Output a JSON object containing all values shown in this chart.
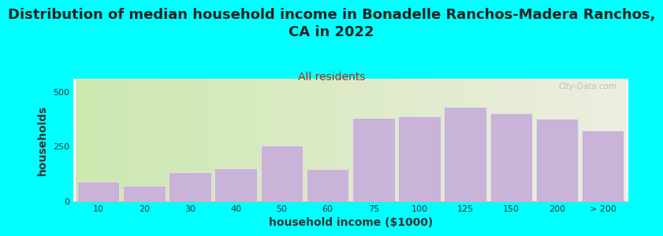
{
  "title": "Distribution of median household income in Bonadelle Ranchos-Madera Ranchos,\nCA in 2022",
  "subtitle": "All residents",
  "xlabel": "household income ($1000)",
  "ylabel": "households",
  "bar_labels": [
    "10",
    "20",
    "30",
    "40",
    "50",
    "60",
    "75",
    "100",
    "125",
    "150",
    "200",
    "> 200"
  ],
  "bar_values": [
    90,
    72,
    130,
    150,
    255,
    145,
    380,
    385,
    430,
    400,
    375,
    320
  ],
  "bar_color": "#c9b3d9",
  "bar_edge_color": "#e8e8e8",
  "background_color": "#00ffff",
  "plot_bg_gradient_left": "#cce8b0",
  "plot_bg_gradient_right": "#eeeee0",
  "ylim": [
    0,
    560
  ],
  "yticks": [
    0,
    250,
    500
  ],
  "title_fontsize": 13,
  "subtitle_fontsize": 10,
  "subtitle_color": "#cc2200",
  "axis_label_fontsize": 10,
  "tick_fontsize": 8,
  "watermark": "City-Data.com"
}
